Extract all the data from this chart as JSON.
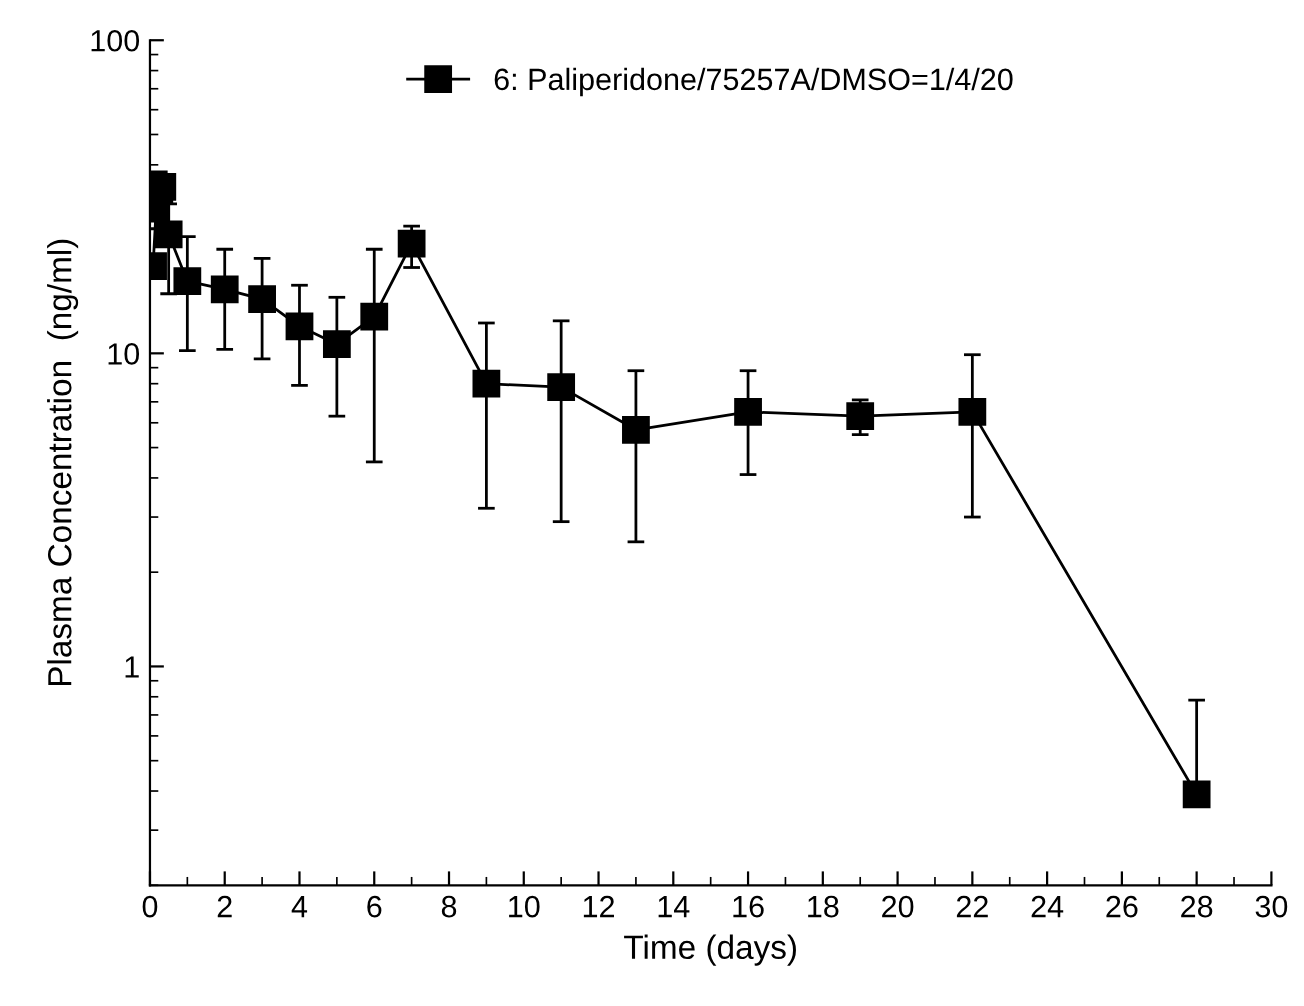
{
  "chart_data": {
    "type": "line",
    "xlabel": "Time (days)",
    "ylabel": "Plasma Concentration  (ng/ml)",
    "x": [
      0.083,
      0.167,
      0.25,
      0.33,
      0.5,
      1,
      2,
      3,
      4,
      5,
      6,
      7,
      9,
      11,
      13,
      16,
      19,
      22,
      28
    ],
    "series": [
      {
        "name": "6: Paliperidone/75257A/DMSO=1/4/20",
        "color": "#000000",
        "values": [
          19,
          29,
          33,
          34,
          24,
          17,
          16,
          14.9,
          12.2,
          10.7,
          13.1,
          22.4,
          8.0,
          7.8,
          5.7,
          6.5,
          6.3,
          6.5,
          0.39
        ],
        "errors": [
          null,
          null,
          [
            25,
            38
          ],
          null,
          [
            15.5,
            30
          ],
          [
            10.2,
            23.6
          ],
          [
            10.3,
            21.5
          ],
          [
            9.6,
            20.1
          ],
          [
            7.9,
            16.5
          ],
          [
            6.3,
            15.1
          ],
          [
            4.5,
            21.5
          ],
          [
            18.8,
            25.5
          ],
          [
            3.2,
            12.5
          ],
          [
            2.9,
            12.7
          ],
          [
            2.5,
            8.8
          ],
          [
            4.1,
            8.8
          ],
          [
            5.5,
            7.1
          ],
          [
            3.0,
            9.9
          ],
          [
            0.39,
            0.78
          ]
        ]
      }
    ],
    "log": "y",
    "xlim": [
      0,
      30
    ],
    "xticks": [
      0,
      2,
      4,
      6,
      8,
      10,
      12,
      14,
      16,
      18,
      20,
      22,
      24,
      26,
      28,
      30
    ],
    "ylim": [
      0.2,
      100
    ],
    "yticks": [
      1,
      10,
      100
    ],
    "marker": "square",
    "line_style": "solid",
    "legend": "top",
    "grid": false
  }
}
